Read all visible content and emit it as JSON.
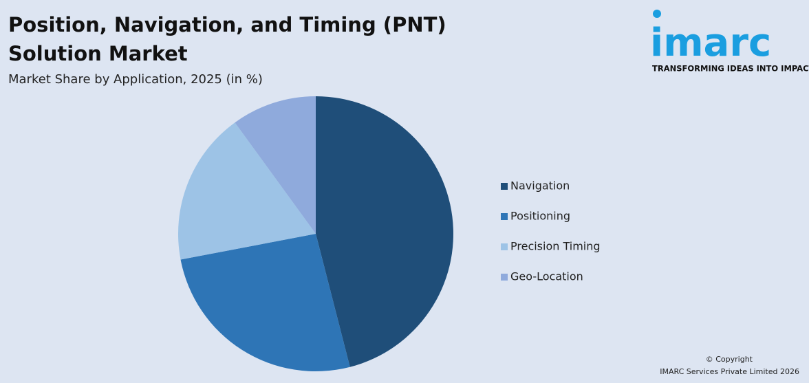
{
  "chart_data": {
    "type": "pie",
    "title": "Position, Navigation, and Timing (PNT) Solution Market",
    "subtitle": "Market Share by Application, 2025 (in %)",
    "categories": [
      "Navigation",
      "Positioning",
      "Precision Timing",
      "Geo-Location"
    ],
    "values": [
      46,
      26,
      18,
      10
    ],
    "colors": [
      "#1f4e79",
      "#2e75b6",
      "#9dc3e6",
      "#8faadc"
    ],
    "legend": "right"
  },
  "logo": {
    "name": "imarc",
    "tagline": "TRANSFORMING IDEAS INTO IMPACT"
  },
  "footer": {
    "copyright": "© Copyright",
    "company": "IMARC Services Private Limited 2026"
  }
}
